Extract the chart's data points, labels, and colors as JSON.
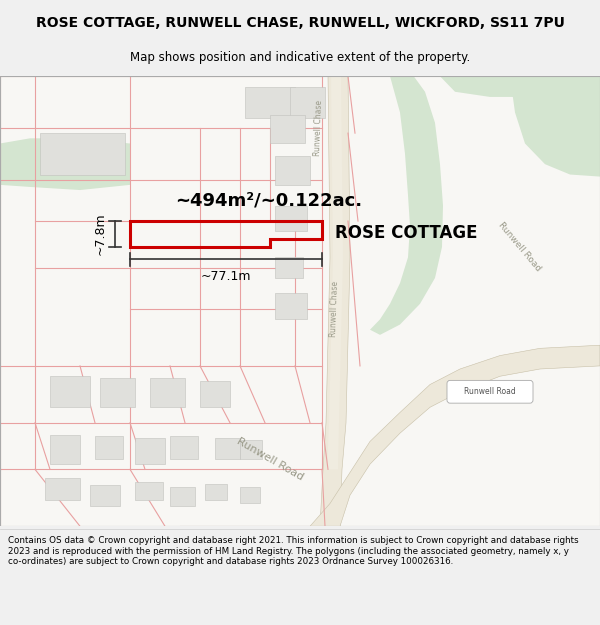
{
  "title_line1": "ROSE COTTAGE, RUNWELL CHASE, RUNWELL, WICKFORD, SS11 7PU",
  "title_line2": "Map shows position and indicative extent of the property.",
  "footer_text": "Contains OS data © Crown copyright and database right 2021. This information is subject to Crown copyright and database rights 2023 and is reproduced with the permission of HM Land Registry. The polygons (including the associated geometry, namely x, y co-ordinates) are subject to Crown copyright and database rights 2023 Ordnance Survey 100026316.",
  "label_area": "~494m²/~0.122ac.",
  "label_width": "~77.1m",
  "label_height": "~7.8m",
  "label_property": "ROSE COTTAGE",
  "label_road_chase1": "Runwell Chase",
  "label_road_chase2": "Runwell Chase",
  "label_road_main": "Runwell Road",
  "label_road_sign": "Runwell Road",
  "map_bg": "#f8f7f4",
  "highlight_color": "#cc0000",
  "plot_line_color": "#e8a0a0",
  "road_fill": "#ede8da",
  "green_color": "#d4e5d0",
  "building_fill": "#e0e0dc",
  "dim_color": "#333333",
  "road_border_color": "#c8c0a8",
  "title_bg": "#f0f0f0",
  "road_text_color": "#999988"
}
